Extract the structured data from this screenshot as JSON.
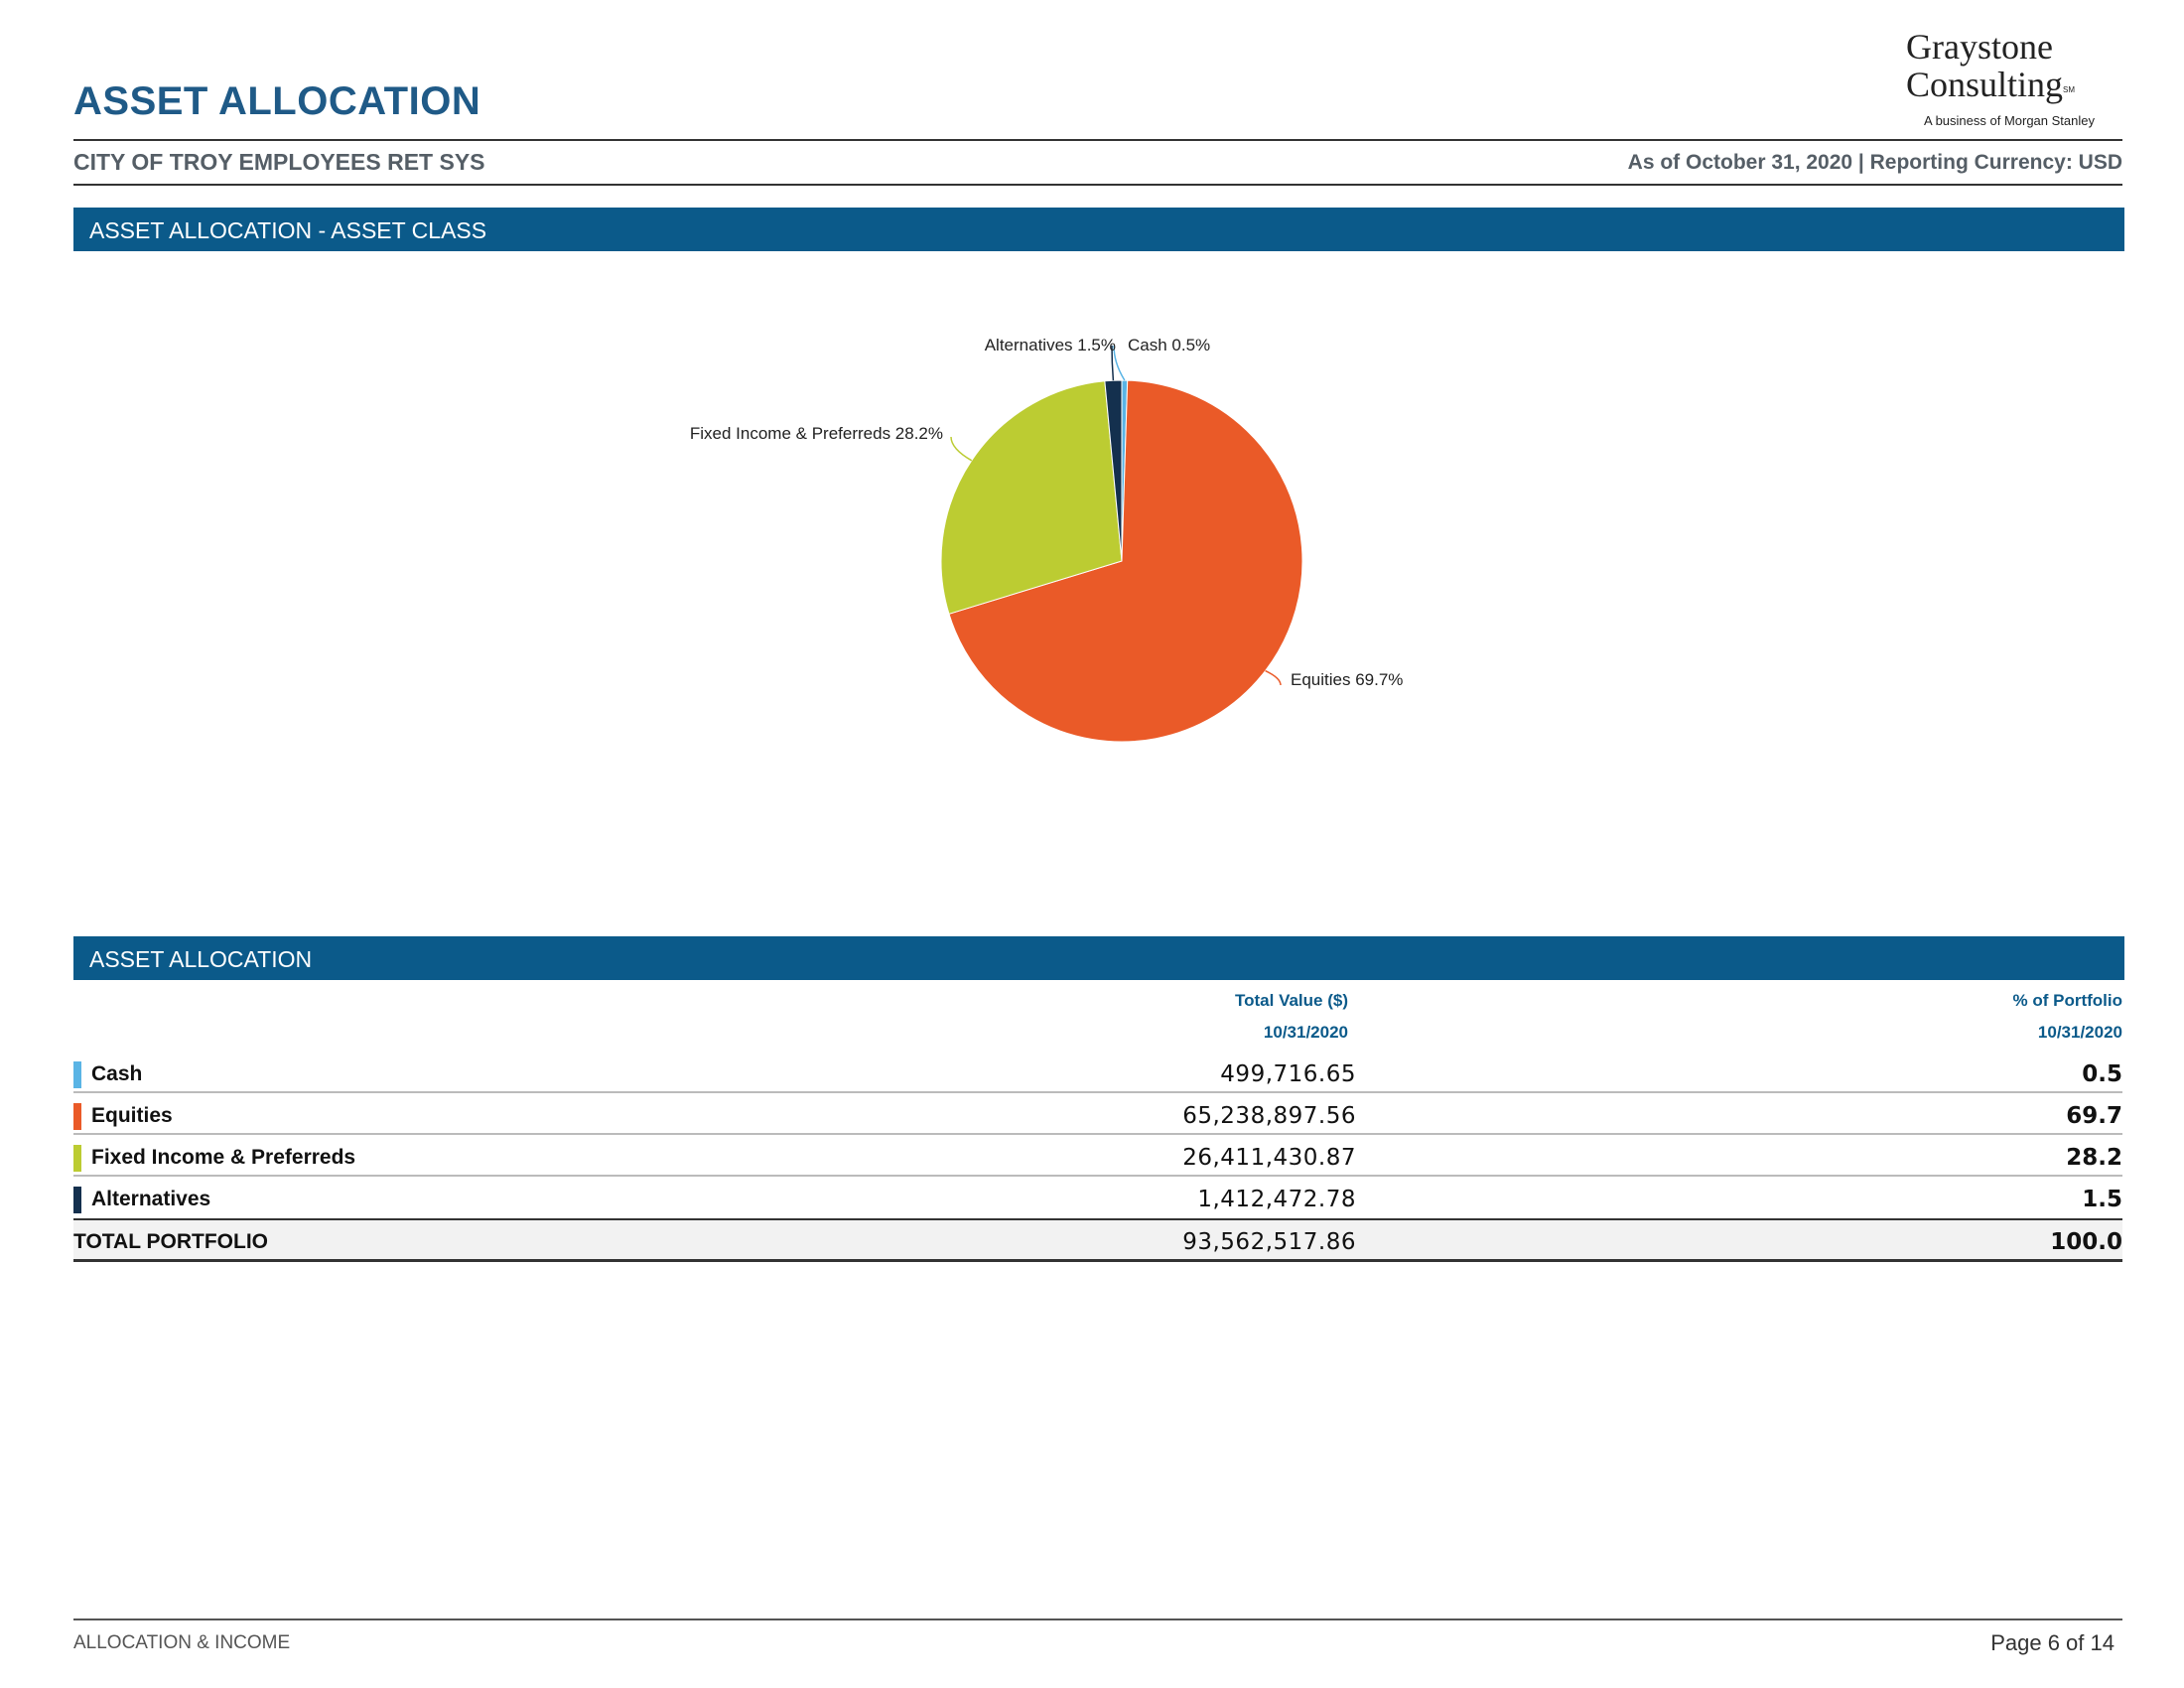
{
  "header": {
    "title": "ASSET ALLOCATION",
    "client_name": "CITY OF TROY EMPLOYEES RET SYS",
    "as_of": "As of October 31, 2020 | Reporting Currency: USD"
  },
  "logo": {
    "line1": "Graystone",
    "line2": "Consulting",
    "mark": "SM",
    "tagline": "A business of Morgan Stanley"
  },
  "section1": {
    "title": "ASSET ALLOCATION - ASSET CLASS"
  },
  "chart_data": {
    "type": "pie",
    "slices": [
      {
        "label": "Cash",
        "value": 0.5,
        "display": "Cash 0.5%",
        "color": "#5ab4e5"
      },
      {
        "label": "Equities",
        "value": 69.7,
        "display": "Equities 69.7%",
        "color": "#ea5a28"
      },
      {
        "label": "Fixed Income & Preferreds",
        "value": 28.2,
        "display": "Fixed Income & Preferreds 28.2%",
        "color": "#bccc32"
      },
      {
        "label": "Alternatives",
        "value": 1.5,
        "display": "Alternatives 1.5%",
        "color": "#14304e"
      }
    ]
  },
  "section2": {
    "title": "ASSET ALLOCATION"
  },
  "table": {
    "col_value": "Total Value ($)",
    "col_value_date": "10/31/2020",
    "col_pct": "% of Portfolio",
    "col_pct_date": "10/31/2020",
    "rows": [
      {
        "name": "Cash",
        "value": "499,716.65",
        "pct": "0.5",
        "color": "#5ab4e5"
      },
      {
        "name": "Equities",
        "value": "65,238,897.56",
        "pct": "69.7",
        "color": "#ea5a28"
      },
      {
        "name": "Fixed Income & Preferreds",
        "value": "26,411,430.87",
        "pct": "28.2",
        "color": "#bccc32"
      },
      {
        "name": "Alternatives",
        "value": "1,412,472.78",
        "pct": "1.5",
        "color": "#14304e"
      }
    ],
    "total": {
      "name": "TOTAL PORTFOLIO",
      "value": "93,562,517.86",
      "pct": "100.0"
    }
  },
  "footer": {
    "left": "ALLOCATION & INCOME",
    "right": "Page 6 of 14"
  }
}
